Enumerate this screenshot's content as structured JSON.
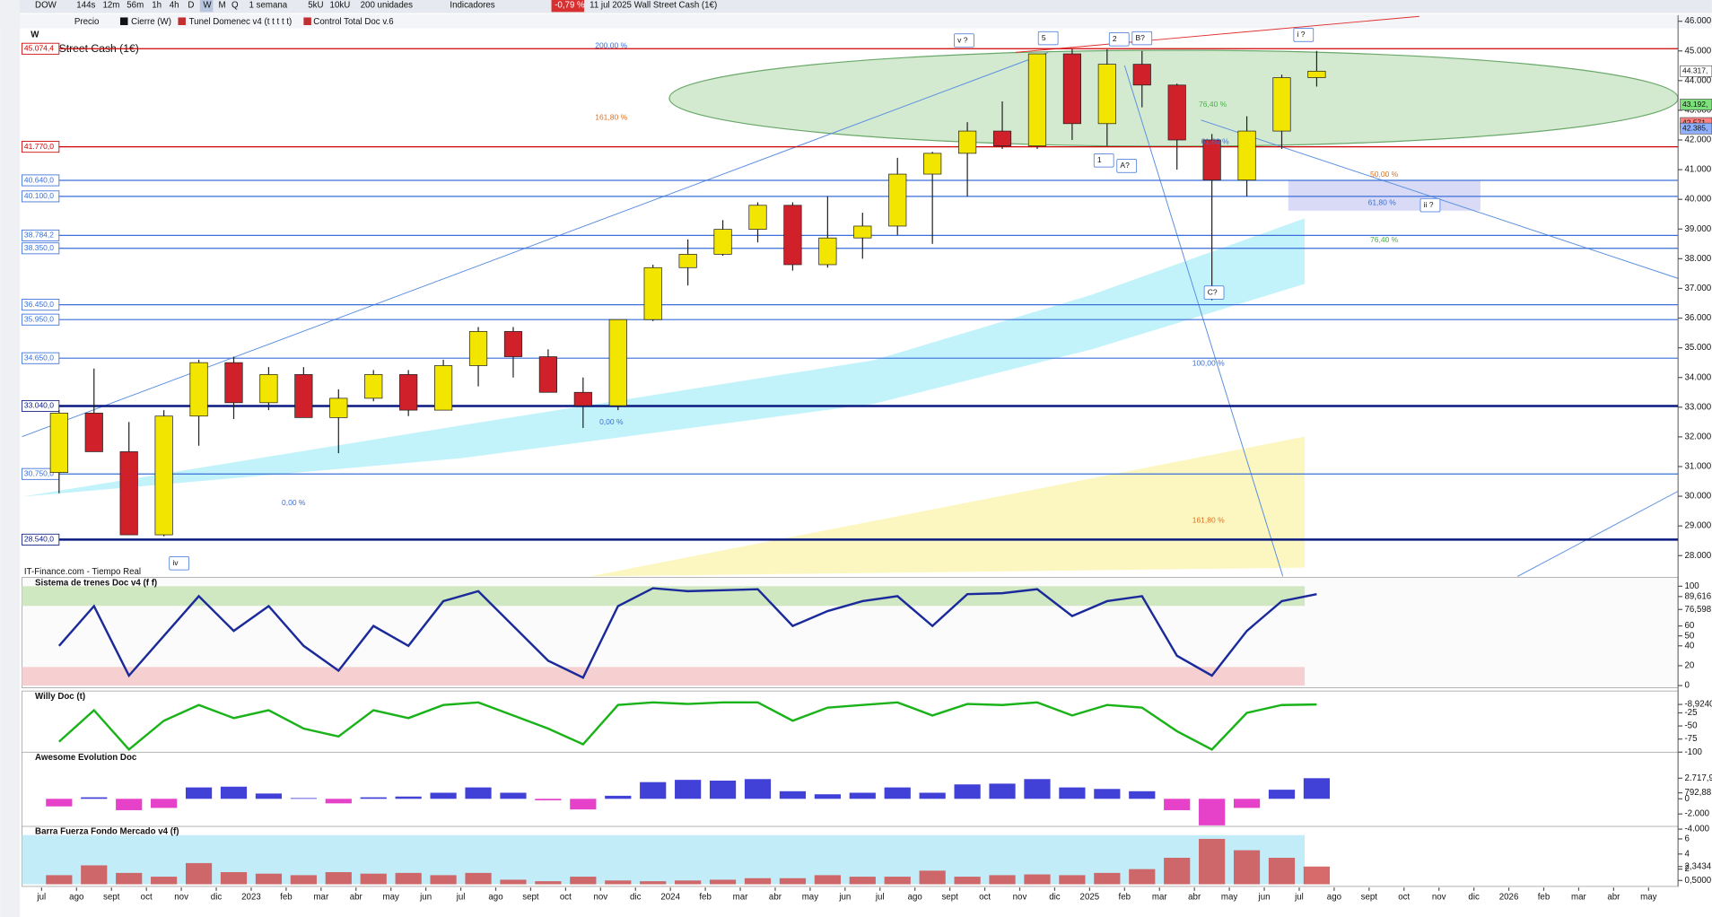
{
  "toolbar": {
    "symbol": "DOW",
    "intervals": [
      "144s",
      "12m",
      "56m",
      "1h",
      "4h",
      "D",
      "W",
      "M",
      "Q"
    ],
    "period": "1 semana",
    "units": [
      "5kU",
      "10kU",
      "200 unidades"
    ],
    "indicators": "Indicadores",
    "change": "-0,79 %",
    "info": "11 jul 2025 Wall Street Cash (1€)"
  },
  "legend_bar": [
    "Precio",
    "Cierre (W)",
    "Tunel Domenec v4 (t t t t t)",
    "Control Total Doc v.6"
  ],
  "source": "IT-Finance.com - Tiempo Real",
  "chart_data": [
    {
      "type": "candlestick",
      "title": "Wall Street Cash (1€)",
      "subtitle": "W",
      "categories": [
        "jul",
        "ago",
        "sept",
        "oct",
        "nov",
        "dic",
        "2023",
        "feb",
        "mar",
        "abr",
        "may",
        "jun",
        "jul",
        "ago",
        "sept",
        "oct",
        "nov",
        "dic",
        "2024",
        "feb",
        "mar",
        "abr",
        "may",
        "jun",
        "jul",
        "ago",
        "sept",
        "oct",
        "nov",
        "dic",
        "2025",
        "feb",
        "mar",
        "abr",
        "may",
        "jun",
        "jul",
        "ago",
        "sept",
        "oct",
        "nov",
        "dic",
        "2026",
        "feb",
        "mar",
        "abr",
        "may"
      ],
      "open": [
        30800,
        32800,
        31500,
        28700,
        32700,
        34500,
        33150,
        34100,
        32650,
        33300,
        34100,
        32900,
        34400,
        35550,
        34700,
        33500,
        33050,
        35950,
        37700,
        38150,
        38990,
        39800,
        37800,
        38700,
        39100,
        40850,
        41550,
        42300,
        41800,
        44900,
        42550,
        44550,
        43850,
        42000,
        40650,
        42300,
        44100,
        null,
        null,
        null,
        null,
        null,
        null,
        null,
        null,
        null,
        null
      ],
      "high": [
        32900,
        34300,
        32500,
        32900,
        34600,
        34700,
        34350,
        34350,
        33600,
        34250,
        34250,
        34600,
        35700,
        35700,
        34950,
        34000,
        35950,
        37800,
        38650,
        39300,
        39900,
        39900,
        40100,
        39550,
        41400,
        41600,
        42600,
        43300,
        44900,
        45070,
        45050,
        45000,
        43900,
        42200,
        42800,
        44200,
        45000,
        null,
        null,
        null,
        null,
        null,
        null,
        null,
        null,
        null,
        null
      ],
      "low": [
        30100,
        31600,
        28700,
        28650,
        31700,
        32600,
        32900,
        32650,
        31450,
        33200,
        32700,
        32900,
        33700,
        34000,
        33600,
        32300,
        32900,
        35900,
        37100,
        38100,
        38550,
        37600,
        37700,
        38000,
        38800,
        38500,
        40100,
        41700,
        41700,
        42000,
        41800,
        43100,
        41000,
        36600,
        40100,
        41700,
        43800,
        null,
        null,
        null,
        null,
        null,
        null,
        null,
        null,
        null,
        null
      ],
      "close": [
        32800,
        31500,
        28700,
        32700,
        34500,
        33150,
        34100,
        32650,
        33300,
        34100,
        32900,
        34400,
        35550,
        34700,
        33500,
        33050,
        35950,
        37700,
        38150,
        38990,
        39800,
        37800,
        38700,
        39100,
        40850,
        41550,
        42300,
        41800,
        44900,
        42550,
        44550,
        43850,
        42000,
        40650,
        42300,
        44100,
        44317,
        null,
        null,
        null,
        null,
        null,
        null,
        null,
        null,
        null,
        null
      ],
      "up_color": "#f2e600",
      "down_color": "#d0202a",
      "ylim": [
        27300,
        46200
      ],
      "yticks": [
        {
          "value": 46000,
          "label": "46.000"
        },
        {
          "value": 45000,
          "label": "45.000"
        },
        {
          "value": 44000,
          "label": "44.000"
        },
        {
          "value": 43000,
          "label": "43.000"
        },
        {
          "value": 42000,
          "label": "42.000"
        },
        {
          "value": 41000,
          "label": "41.000"
        },
        {
          "value": 40000,
          "label": "40.000"
        },
        {
          "value": 39000,
          "label": "39.000"
        },
        {
          "value": 38000,
          "label": "38.000"
        },
        {
          "value": 37000,
          "label": "37.000"
        },
        {
          "value": 36000,
          "label": "36.000"
        },
        {
          "value": 35000,
          "label": "35.000"
        },
        {
          "value": 34000,
          "label": "34.000"
        },
        {
          "value": 33000,
          "label": "33.000"
        },
        {
          "value": 32000,
          "label": "32.000"
        },
        {
          "value": 31000,
          "label": "31.000"
        },
        {
          "value": 30000,
          "label": "30.000"
        },
        {
          "value": 29000,
          "label": "29.000"
        },
        {
          "value": 28000,
          "label": "28.000"
        }
      ],
      "levels": [
        {
          "value": 45074.4,
          "label": "45.074,4",
          "color": "#cc0000"
        },
        {
          "value": 41770,
          "label": "41.770,0",
          "color": "#cc0000"
        },
        {
          "value": 40640,
          "label": "40.640,0",
          "color": "#3a6fd8"
        },
        {
          "value": 40100,
          "label": "40.100,0",
          "color": "#3a6fd8"
        },
        {
          "value": 38784.2,
          "label": "38.784,2",
          "color": "#3a6fd8"
        },
        {
          "value": 38350,
          "label": "38.350,0",
          "color": "#3a6fd8"
        },
        {
          "value": 36450,
          "label": "36.450,0",
          "color": "#3a6fd8"
        },
        {
          "value": 35950,
          "label": "35.950,0",
          "color": "#3a6fd8"
        },
        {
          "value": 34650,
          "label": "34.650,0",
          "color": "#3a6fd8"
        },
        {
          "value": 33040,
          "label": "33.040,0",
          "color": "#0a1a80"
        },
        {
          "value": 30750,
          "label": "30.750,0",
          "color": "#3a6fd8"
        },
        {
          "value": 28540,
          "label": "28.540,0",
          "color": "#0a1a80"
        }
      ],
      "price_tags": [
        {
          "value": 44317,
          "label": "44.317,",
          "color": "#ffffff"
        },
        {
          "value": 43192,
          "label": "43.192,",
          "color": "#7de07d"
        },
        {
          "value": 42571,
          "label": "42.571,",
          "color": "#ff8080"
        },
        {
          "value": 42385,
          "label": "42.385,",
          "color": "#8fb0ff"
        }
      ],
      "annotations": [
        "200,00 %",
        "161,80 %",
        "0,00 %",
        "100,00 %",
        "161,80 %",
        "61,80 %",
        "50,00 %",
        "76,40 %",
        "0,00 %",
        "76,40 %",
        "61,80 %",
        "v ?",
        "5",
        "2",
        "B?",
        "i ?",
        "1",
        "A?",
        "C?",
        "ii ?",
        "iv"
      ]
    },
    {
      "type": "line",
      "title": "Sistema de trenes Doc v4 (f f)",
      "color": "#1a2a9a",
      "values": [
        40,
        80,
        10,
        50,
        90,
        55,
        80,
        40,
        15,
        60,
        40,
        85,
        95,
        60,
        25,
        8,
        80,
        98,
        95,
        96,
        97,
        60,
        75,
        85,
        90,
        60,
        92,
        93,
        97,
        70,
        85,
        90,
        30,
        10,
        55,
        85,
        92,
        null,
        null,
        null,
        null,
        null,
        null,
        null,
        null,
        null,
        null
      ],
      "ylim": [
        0,
        100
      ],
      "yticks": [
        100,
        {
          "value": 89.616,
          "label": "89,616"
        },
        {
          "value": 76.598,
          "label": "76,598"
        },
        60,
        50,
        40,
        20,
        0
      ]
    },
    {
      "type": "line",
      "title": "Willy Doc (t)",
      "color": "#19b319",
      "values": [
        -80,
        -20,
        -95,
        -40,
        -10,
        -35,
        -20,
        -55,
        -70,
        -20,
        -35,
        -10,
        -5,
        -30,
        -55,
        -85,
        -10,
        -5,
        -8,
        -5,
        -5,
        -40,
        -15,
        -10,
        -5,
        -30,
        -8,
        -10,
        -5,
        -30,
        -10,
        -15,
        -60,
        -95,
        -25,
        -10,
        -9,
        null,
        null,
        null,
        null,
        null,
        null,
        null,
        null,
        null,
        null
      ],
      "ylim": [
        -100,
        0
      ],
      "yticks": [
        {
          "value": -8.924,
          "label": "-8,9240"
        },
        -25,
        -50,
        -75,
        -100
      ]
    },
    {
      "type": "bar",
      "title": "Awesome Evolution Doc",
      "color": "#2020d0",
      "negative_color": "#e020c0",
      "values": [
        -1000,
        200,
        -1500,
        -1200,
        1500,
        1600,
        700,
        100,
        -600,
        200,
        300,
        800,
        1500,
        800,
        -200,
        -1400,
        400,
        2200,
        2500,
        2400,
        2600,
        1000,
        600,
        800,
        1500,
        800,
        1900,
        2000,
        2600,
        1500,
        1300,
        1000,
        -1500,
        -3500,
        -1200,
        1200,
        2717.9,
        null,
        null,
        null,
        null,
        null,
        null,
        null,
        null,
        null,
        null
      ],
      "ylim": [
        -4500,
        5000
      ],
      "yticks": [
        {
          "value": 2717.9,
          "label": "2.717,9"
        },
        {
          "value": 792.88,
          "label": "792,88"
        },
        0,
        {
          "value": -2000,
          "label": "-2.000"
        },
        {
          "value": -4000,
          "label": "-4.000"
        }
      ]
    },
    {
      "type": "bar",
      "title": "Barra Fuerza Fondo Mercado v4 (f)",
      "color": "#d05050",
      "values": [
        1.2,
        2.5,
        1.5,
        1.0,
        2.8,
        1.6,
        1.4,
        1.2,
        1.6,
        1.4,
        1.5,
        1.2,
        1.5,
        0.6,
        0.4,
        1.0,
        0.5,
        0.4,
        0.5,
        0.6,
        0.8,
        0.8,
        1.2,
        1.0,
        1.0,
        1.8,
        1.0,
        1.2,
        1.3,
        1.2,
        1.5,
        2.0,
        3.5,
        6.0,
        4.5,
        3.5,
        2.3434,
        null,
        null,
        null,
        null,
        null,
        null,
        null,
        null,
        null,
        null
      ],
      "ylim": [
        0,
        6.5
      ],
      "yticks": [
        6,
        4,
        {
          "value": 2.3434,
          "label": "2,3434"
        },
        2,
        {
          "value": 0.5,
          "label": "0,5000"
        }
      ]
    }
  ]
}
